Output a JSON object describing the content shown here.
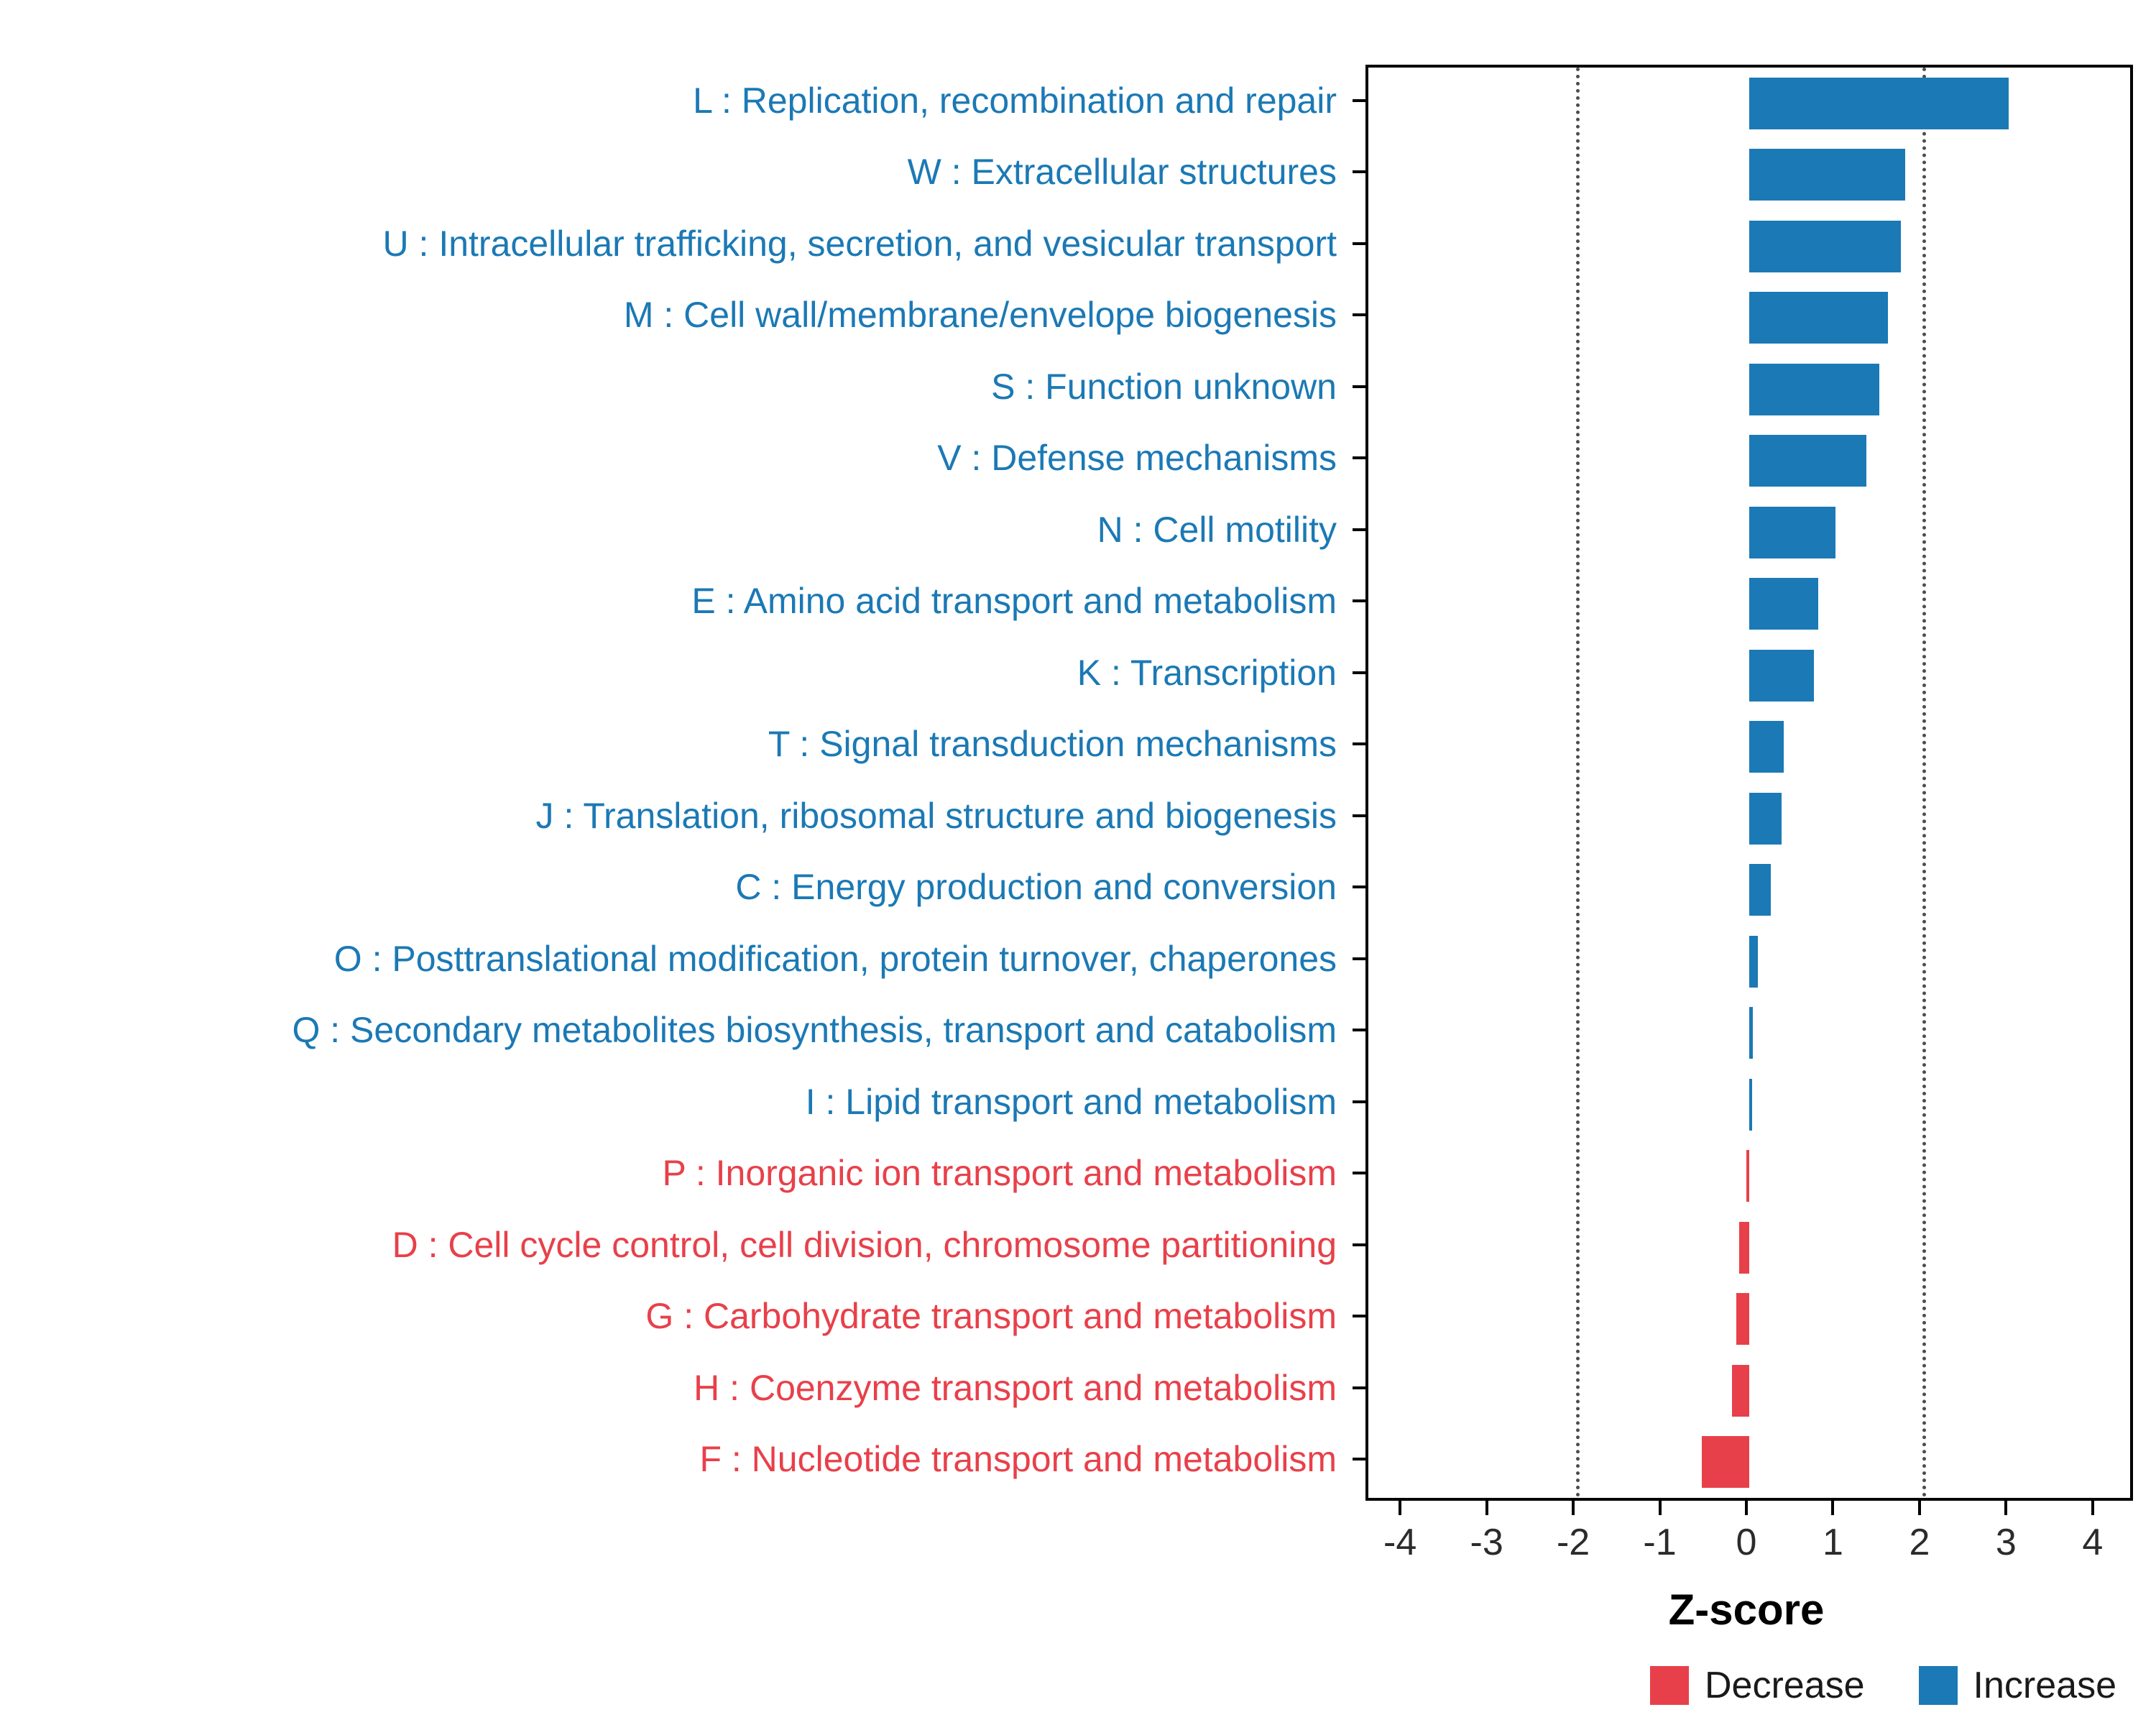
{
  "chart_data": {
    "type": "bar",
    "orientation": "horizontal",
    "title": "",
    "xlabel": "Z-score",
    "ylabel": "",
    "xlim": [
      -4.4,
      4.4
    ],
    "x_ticks": [
      -4,
      -3,
      -2,
      -1,
      0,
      1,
      2,
      3,
      4
    ],
    "x_tick_labels": [
      "-4",
      "-3",
      "-2",
      "-1",
      "0",
      "1",
      "2",
      "3",
      "4"
    ],
    "reference_lines": [
      -2,
      2
    ],
    "grid": false,
    "legend_position": "bottom-right",
    "colors": {
      "increase": "#1b79b5",
      "decrease": "#e8404a",
      "axis_text": "#2b2b2b",
      "panel_border": "#000000",
      "refline": "#4d4d4d"
    },
    "legend": [
      {
        "label": "Decrease",
        "key": "decrease"
      },
      {
        "label": "Increase",
        "key": "increase"
      }
    ],
    "bars": [
      {
        "label": "L : Replication, recombination and repair",
        "value": 3.0,
        "direction": "increase"
      },
      {
        "label": "W : Extracellular structures",
        "value": 1.8,
        "direction": "increase"
      },
      {
        "label": "U : Intracellular trafficking, secretion, and vesicular transport",
        "value": 1.75,
        "direction": "increase"
      },
      {
        "label": "M : Cell wall/membrane/envelope biogenesis",
        "value": 1.6,
        "direction": "increase"
      },
      {
        "label": "S : Function unknown",
        "value": 1.5,
        "direction": "increase"
      },
      {
        "label": "V : Defense mechanisms",
        "value": 1.35,
        "direction": "increase"
      },
      {
        "label": "N : Cell motility",
        "value": 1.0,
        "direction": "increase"
      },
      {
        "label": "E : Amino acid transport and metabolism",
        "value": 0.8,
        "direction": "increase"
      },
      {
        "label": "K : Transcription",
        "value": 0.75,
        "direction": "increase"
      },
      {
        "label": "T : Signal transduction mechanisms",
        "value": 0.4,
        "direction": "increase"
      },
      {
        "label": "J : Translation, ribosomal structure and biogenesis",
        "value": 0.37,
        "direction": "increase"
      },
      {
        "label": "C : Energy production and conversion",
        "value": 0.25,
        "direction": "increase"
      },
      {
        "label": "O : Posttranslational modification, protein turnover, chaperones",
        "value": 0.1,
        "direction": "increase"
      },
      {
        "label": "Q : Secondary metabolites biosynthesis, transport and catabolism",
        "value": 0.04,
        "direction": "increase"
      },
      {
        "label": "I : Lipid transport and metabolism",
        "value": 0.03,
        "direction": "increase"
      },
      {
        "label": "P : Inorganic ion transport and metabolism",
        "value": -0.03,
        "direction": "decrease"
      },
      {
        "label": "D : Cell cycle control, cell division, chromosome partitioning",
        "value": -0.12,
        "direction": "decrease"
      },
      {
        "label": "G : Carbohydrate transport and metabolism",
        "value": -0.15,
        "direction": "decrease"
      },
      {
        "label": "H : Coenzyme transport and metabolism",
        "value": -0.2,
        "direction": "decrease"
      },
      {
        "label": "F : Nucleotide transport and metabolism",
        "value": -0.55,
        "direction": "decrease"
      }
    ]
  }
}
